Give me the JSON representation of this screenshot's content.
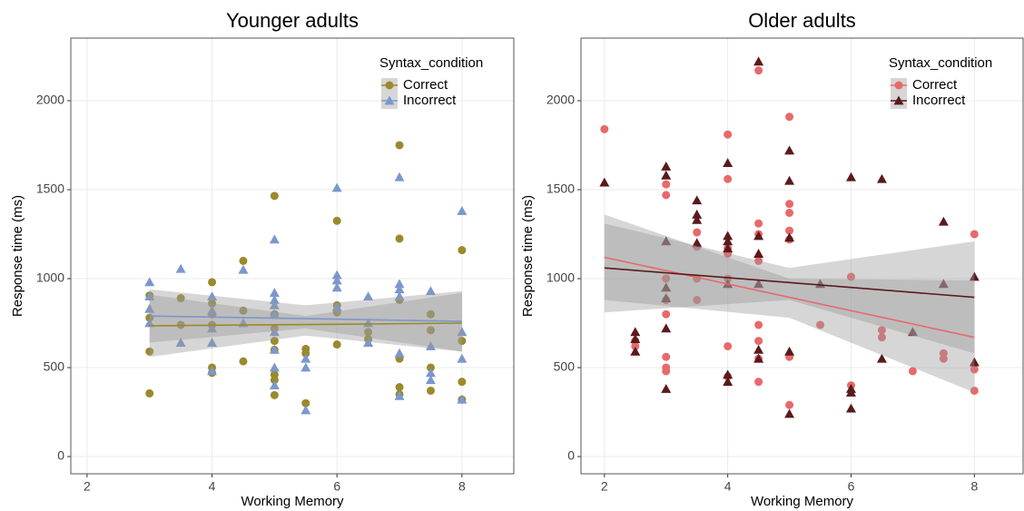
{
  "chart_data": [
    {
      "type": "scatter",
      "title": "Younger adults",
      "x_label": "Working Memory",
      "y_label": "Response time (ms)",
      "xlim": [
        1.74,
        8.83
      ],
      "ylim": [
        -97,
        2352
      ],
      "xticks": [
        2,
        4,
        6,
        8
      ],
      "yticks": [
        0,
        500,
        1000,
        1500,
        2000
      ],
      "grid": true,
      "legend_title": "Syntax_condition",
      "legend": "top-right",
      "series": [
        {
          "name": "Correct",
          "color": "#9a8a2c",
          "marker": "circle",
          "x": [
            3,
            3,
            3,
            3,
            3.5,
            3.5,
            4,
            4,
            4,
            4,
            4,
            4,
            4.5,
            4.5,
            4.5,
            5,
            5,
            5,
            5,
            5,
            5,
            5,
            5,
            5.5,
            5.5,
            5.5,
            6,
            6,
            6,
            6,
            6.5,
            6.5,
            7,
            7,
            7,
            7,
            7,
            7,
            7.5,
            7.5,
            7.5,
            7.5,
            8,
            8,
            8,
            8
          ],
          "values": [
            355,
            590,
            780,
            905,
            890,
            740,
            980,
            860,
            800,
            740,
            500,
            470,
            1100,
            820,
            535,
            1465,
            800,
            720,
            650,
            600,
            460,
            430,
            345,
            605,
            580,
            300,
            1325,
            850,
            810,
            630,
            700,
            660,
            1750,
            1225,
            880,
            550,
            390,
            350,
            800,
            710,
            500,
            370,
            1160,
            650,
            420,
            320
          ],
          "fit": {
            "x": [
              3,
              5.5,
              8
            ],
            "values": [
              735,
              742,
              750
            ],
            "lower": [
              560,
              680,
              590
            ],
            "upper": [
              910,
              790,
              920
            ]
          }
        },
        {
          "name": "Incorrect",
          "color": "#7b97cd",
          "marker": "triangle",
          "x": [
            3,
            3,
            3,
            3,
            3.5,
            3.5,
            4,
            4,
            4,
            4,
            4,
            4.5,
            4.5,
            5,
            5,
            5,
            5,
            5,
            5,
            5,
            5,
            5,
            5.5,
            5.5,
            5.5,
            6,
            6,
            6,
            6,
            6,
            6.5,
            6.5,
            6.5,
            7,
            7,
            7,
            7,
            7,
            7,
            7.5,
            7.5,
            7.5,
            7.5,
            8,
            8,
            8,
            8
          ],
          "values": [
            980,
            900,
            830,
            750,
            1055,
            640,
            900,
            820,
            720,
            640,
            480,
            1050,
            750,
            1220,
            920,
            880,
            850,
            800,
            700,
            600,
            500,
            400,
            550,
            500,
            260,
            1510,
            1020,
            990,
            950,
            840,
            900,
            750,
            640,
            1570,
            970,
            940,
            900,
            580,
            340,
            930,
            620,
            470,
            430,
            1380,
            700,
            550,
            320
          ],
          "fit": {
            "x": [
              3,
              5.5,
              8
            ],
            "values": [
              790,
              775,
              760
            ],
            "lower": [
              640,
              720,
              590
            ],
            "upper": [
              940,
              850,
              930
            ]
          }
        }
      ]
    },
    {
      "type": "scatter",
      "title": "Older adults",
      "x_label": "Working Memory",
      "y_label": "Response time (ms)",
      "xlim": [
        1.62,
        8.79
      ],
      "ylim": [
        -97,
        2352
      ],
      "xticks": [
        2,
        4,
        6,
        8
      ],
      "yticks": [
        0,
        500,
        1000,
        1500,
        2000
      ],
      "grid": true,
      "legend_title": "Syntax_condition",
      "legend": "top-right",
      "series": [
        {
          "name": "Correct",
          "color": "#e8696b",
          "marker": "circle",
          "x": [
            2,
            2.5,
            2.5,
            3,
            3,
            3,
            3,
            3,
            3,
            3,
            3,
            3.5,
            3.5,
            3.5,
            3.5,
            4,
            4,
            4,
            4,
            4,
            4,
            4,
            4.5,
            4.5,
            4.5,
            4.5,
            4.5,
            4.5,
            4.5,
            4.5,
            5,
            5,
            5,
            5,
            5,
            5,
            5,
            5.5,
            6,
            6,
            6.5,
            6.5,
            7,
            7.5,
            7.5,
            8,
            8,
            8
          ],
          "values": [
            1840,
            650,
            620,
            1530,
            1470,
            1000,
            880,
            800,
            560,
            500,
            480,
            1260,
            1180,
            1000,
            880,
            1810,
            1560,
            1170,
            1140,
            1000,
            620,
            450,
            2170,
            1310,
            1250,
            1100,
            740,
            650,
            550,
            420,
            1910,
            1420,
            1370,
            1270,
            1220,
            560,
            290,
            740,
            1010,
            400,
            710,
            670,
            480,
            580,
            550,
            1250,
            490,
            370
          ],
          "fit": {
            "x": [
              2,
              5,
              8
            ],
            "values": [
              1120,
              895,
              670
            ],
            "lower": [
              880,
              780,
              360
            ],
            "upper": [
              1360,
              1000,
              990
            ]
          }
        },
        {
          "name": "Incorrect",
          "color": "#5a1a1c",
          "marker": "triangle",
          "x": [
            2,
            2.5,
            2.5,
            2.5,
            3,
            3,
            3,
            3,
            3,
            3,
            3,
            3.5,
            3.5,
            3.5,
            3.5,
            4,
            4,
            4,
            4,
            4,
            4,
            4,
            4.5,
            4.5,
            4.5,
            4.5,
            4.5,
            4.5,
            5,
            5,
            5,
            5,
            5,
            5.5,
            6,
            6,
            6,
            6,
            6.5,
            6.5,
            7,
            7.5,
            7.5,
            8,
            8
          ],
          "values": [
            1540,
            700,
            660,
            590,
            1630,
            1580,
            1210,
            950,
            890,
            720,
            380,
            1440,
            1360,
            1330,
            1200,
            1650,
            1240,
            1210,
            1170,
            970,
            460,
            420,
            2220,
            1240,
            1140,
            970,
            600,
            550,
            1720,
            1550,
            1230,
            590,
            240,
            970,
            1570,
            380,
            360,
            270,
            1560,
            550,
            700,
            1320,
            970,
            1010,
            530
          ],
          "fit": {
            "x": [
              2,
              5,
              8
            ],
            "values": [
              1060,
              978,
              895
            ],
            "lower": [
              810,
              880,
              580
            ],
            "upper": [
              1310,
              1060,
              1210
            ]
          }
        }
      ]
    }
  ]
}
